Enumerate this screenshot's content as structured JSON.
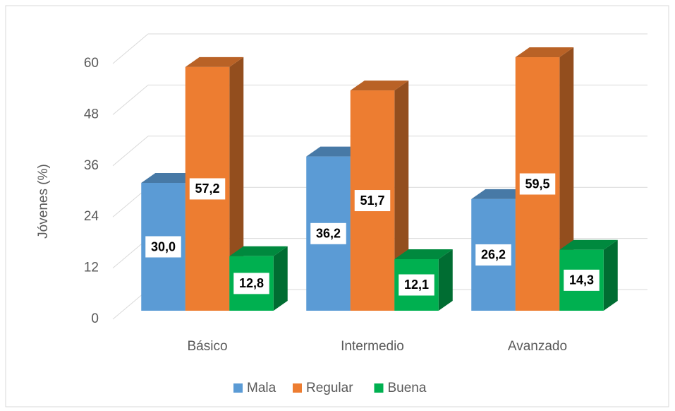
{
  "chart_data": {
    "type": "bar3d",
    "y_label": "Jóvenes (%)",
    "categories": [
      "Básico",
      "Intermedio",
      "Avanzado"
    ],
    "series": [
      {
        "name": "Mala",
        "color": "#5b9bd5",
        "values": [
          30.0,
          36.2,
          26.2
        ],
        "value_labels": [
          "30,0",
          "36,2",
          "26,2"
        ]
      },
      {
        "name": "Regular",
        "color": "#ed7d31",
        "values": [
          57.2,
          51.7,
          59.5
        ],
        "value_labels": [
          "57,2",
          "51,7",
          "59,5"
        ]
      },
      {
        "name": "Buena",
        "color": "#00b050",
        "values": [
          12.8,
          12.1,
          14.3
        ],
        "value_labels": [
          "12,8",
          "12,1",
          "14,3"
        ]
      }
    ],
    "ylim": [
      0,
      60
    ],
    "yticks": [
      0,
      12,
      24,
      36,
      48,
      60
    ],
    "grid": true,
    "legend": "bottom"
  }
}
